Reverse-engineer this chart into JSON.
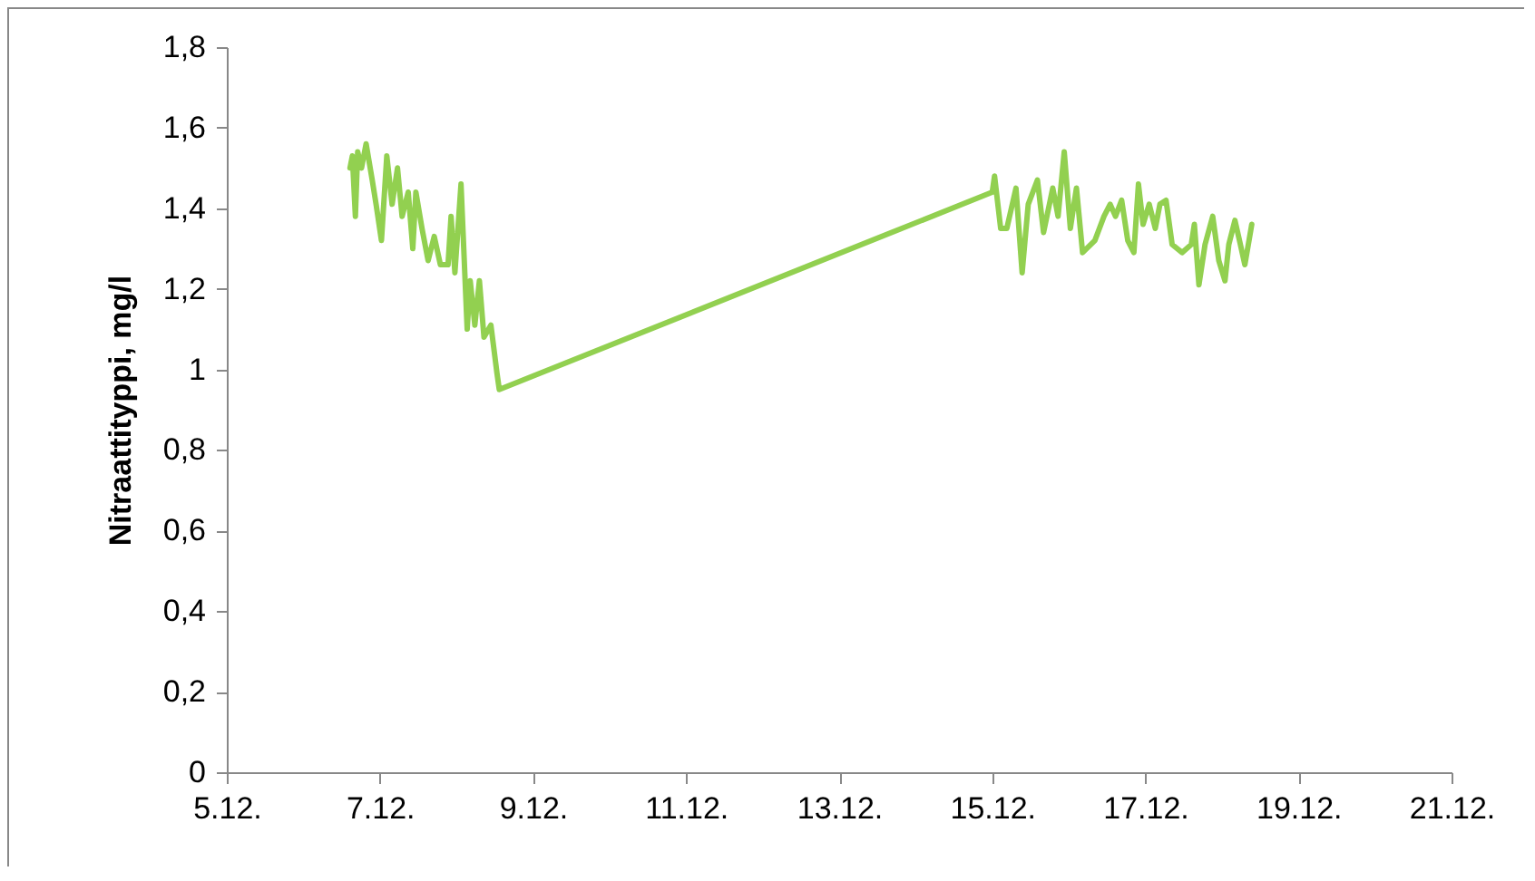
{
  "chart_data": {
    "type": "line",
    "ylabel": "Nitraattityppi, mg/l",
    "xlim": [
      "--12-05",
      "--12-21"
    ],
    "xticks": [
      {
        "value": "--12-05",
        "label": "5.12."
      },
      {
        "value": "--12-07",
        "label": "7.12."
      },
      {
        "value": "--12-09",
        "label": "9.12."
      },
      {
        "value": "--12-11",
        "label": "11.12."
      },
      {
        "value": "--12-13",
        "label": "13.12."
      },
      {
        "value": "--12-15",
        "label": "15.12."
      },
      {
        "value": "--12-17",
        "label": "17.12."
      },
      {
        "value": "--12-19",
        "label": "19.12."
      },
      {
        "value": "--12-21",
        "label": "21.12."
      }
    ],
    "ylim": [
      0,
      1.8
    ],
    "yticks": [
      {
        "value": 0,
        "label": "0"
      },
      {
        "value": 0.2,
        "label": "0,2"
      },
      {
        "value": 0.4,
        "label": "0,4"
      },
      {
        "value": 0.6,
        "label": "0,6"
      },
      {
        "value": 0.8,
        "label": "0,8"
      },
      {
        "value": 1,
        "label": "1"
      },
      {
        "value": 1.2,
        "label": "1,2"
      },
      {
        "value": 1.4,
        "label": "1,4"
      },
      {
        "value": 1.6,
        "label": "1,6"
      },
      {
        "value": 1.8,
        "label": "1,8"
      }
    ],
    "grid": false,
    "marker": "none",
    "line_style": "solid",
    "x": [
      "--12-06T14:38",
      "--12-06T15:22",
      "--12-06T16:19",
      "--12-06T17:02",
      "--12-06T18:14",
      "--12-06T19:41",
      "--12-06T21:36",
      "--12-06T22:48",
      "--12-07T00:29",
      "--12-07T02:10",
      "--12-07T03:50",
      "--12-07T05:31",
      "--12-07T06:58",
      "--12-07T08:53",
      "--12-07T10:19",
      "--12-07T11:17",
      "--12-07T13:12",
      "--12-07T15:07",
      "--12-07T17:02",
      "--12-07T18:58",
      "--12-07T21:22",
      "--12-07T22:19",
      "--12-07T23:31",
      "--12-08T01:26",
      "--12-08T03:22",
      "--12-08T04:19",
      "--12-08T05:46",
      "--12-08T07:12",
      "--12-08T08:38",
      "--12-08T10:48",
      "--12-08T12:43",
      "--12-08T13:26",
      "--12-15T00:00",
      "--12-15T00:43",
      "--12-15T02:38",
      "--12-15T04:34",
      "--12-15T07:26",
      "--12-15T09:22",
      "--12-15T11:17",
      "--12-15T14:10",
      "--12-15T16:05",
      "--12-15T18:58",
      "--12-15T20:38",
      "--12-15T22:34",
      "--12-16T00:29",
      "--12-16T02:24",
      "--12-16T04:19",
      "--12-16T08:10",
      "--12-16T11:02",
      "--12-16T12:58",
      "--12-16T14:38",
      "--12-16T16:34",
      "--12-16T18:29",
      "--12-16T20:24",
      "--12-16T21:50",
      "--12-16T23:17",
      "--12-17T01:12",
      "--12-17T03:07",
      "--12-17T04:34",
      "--12-17T06:29",
      "--12-17T08:24",
      "--12-17T11:31",
      "--12-17T14:24",
      "--12-17T15:22",
      "--12-17T16:48",
      "--12-17T18:43",
      "--12-17T21:07",
      "--12-17T23:02",
      "--12-18T00:58",
      "--12-18T02:10",
      "--12-18T04:05",
      "--12-18T05:31",
      "--12-18T07:12",
      "--12-18T09:22"
    ],
    "series": [
      {
        "color": "#92d050",
        "values": [
          1.5,
          1.53,
          1.38,
          1.54,
          1.5,
          1.56,
          1.47,
          1.41,
          1.32,
          1.53,
          1.41,
          1.5,
          1.38,
          1.44,
          1.3,
          1.44,
          1.35,
          1.27,
          1.33,
          1.26,
          1.26,
          1.38,
          1.24,
          1.46,
          1.1,
          1.22,
          1.11,
          1.22,
          1.08,
          1.11,
          0.99,
          0.95,
          1.44,
          1.48,
          1.35,
          1.35,
          1.45,
          1.24,
          1.41,
          1.47,
          1.34,
          1.45,
          1.38,
          1.54,
          1.35,
          1.45,
          1.29,
          1.32,
          1.38,
          1.41,
          1.38,
          1.42,
          1.32,
          1.29,
          1.46,
          1.36,
          1.41,
          1.35,
          1.41,
          1.42,
          1.31,
          1.29,
          1.31,
          1.36,
          1.21,
          1.31,
          1.38,
          1.27,
          1.22,
          1.31,
          1.37,
          1.32,
          1.26,
          1.36
        ]
      }
    ]
  }
}
